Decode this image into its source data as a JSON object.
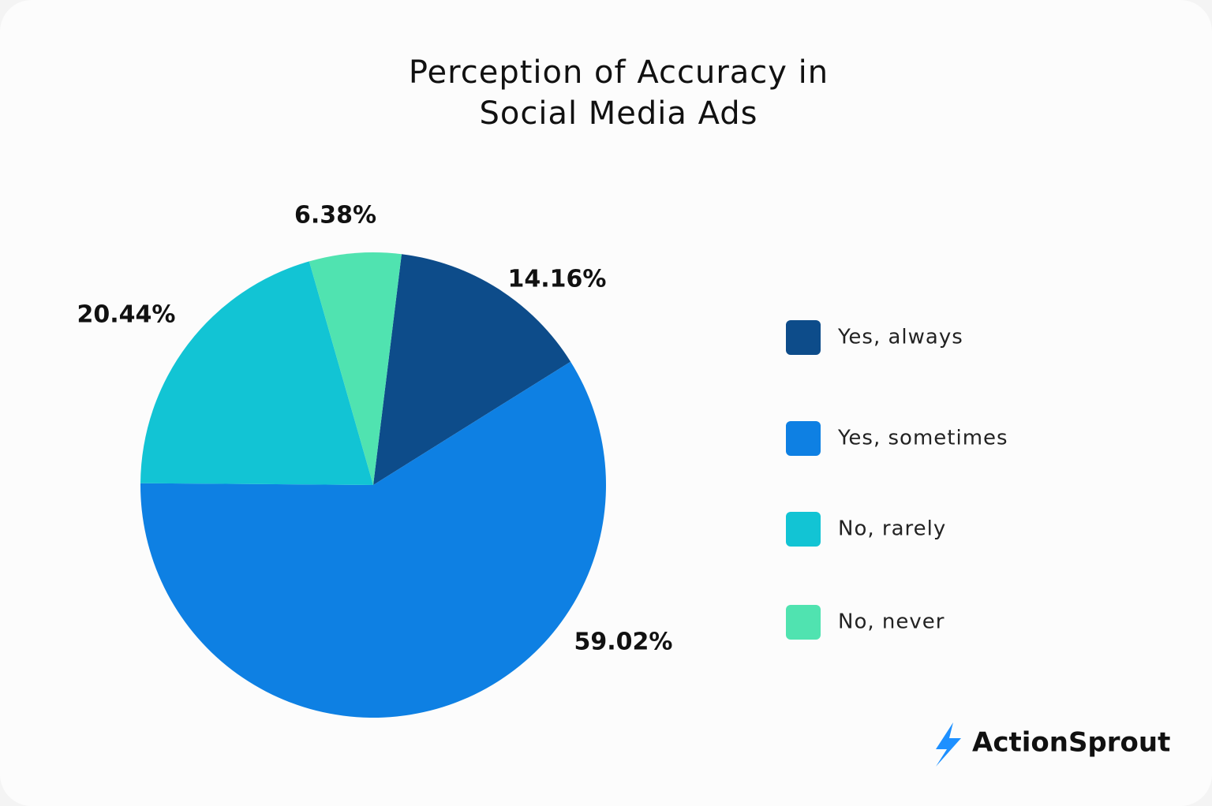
{
  "chart_data": {
    "type": "pie",
    "title": "Perception of Accuracy in Social Media Ads",
    "categories": [
      "Yes, always",
      "Yes, sometimes",
      "No, rarely",
      "No, never"
    ],
    "values": [
      14.16,
      59.02,
      20.44,
      6.38
    ],
    "value_labels": [
      "14.16%",
      "59.02%",
      "20.44%",
      "6.38%"
    ],
    "colors": [
      "#0d4c8a",
      "#0e80e3",
      "#12c4d4",
      "#50e3b0"
    ],
    "legend": "right"
  },
  "logo": "ActionSprout"
}
